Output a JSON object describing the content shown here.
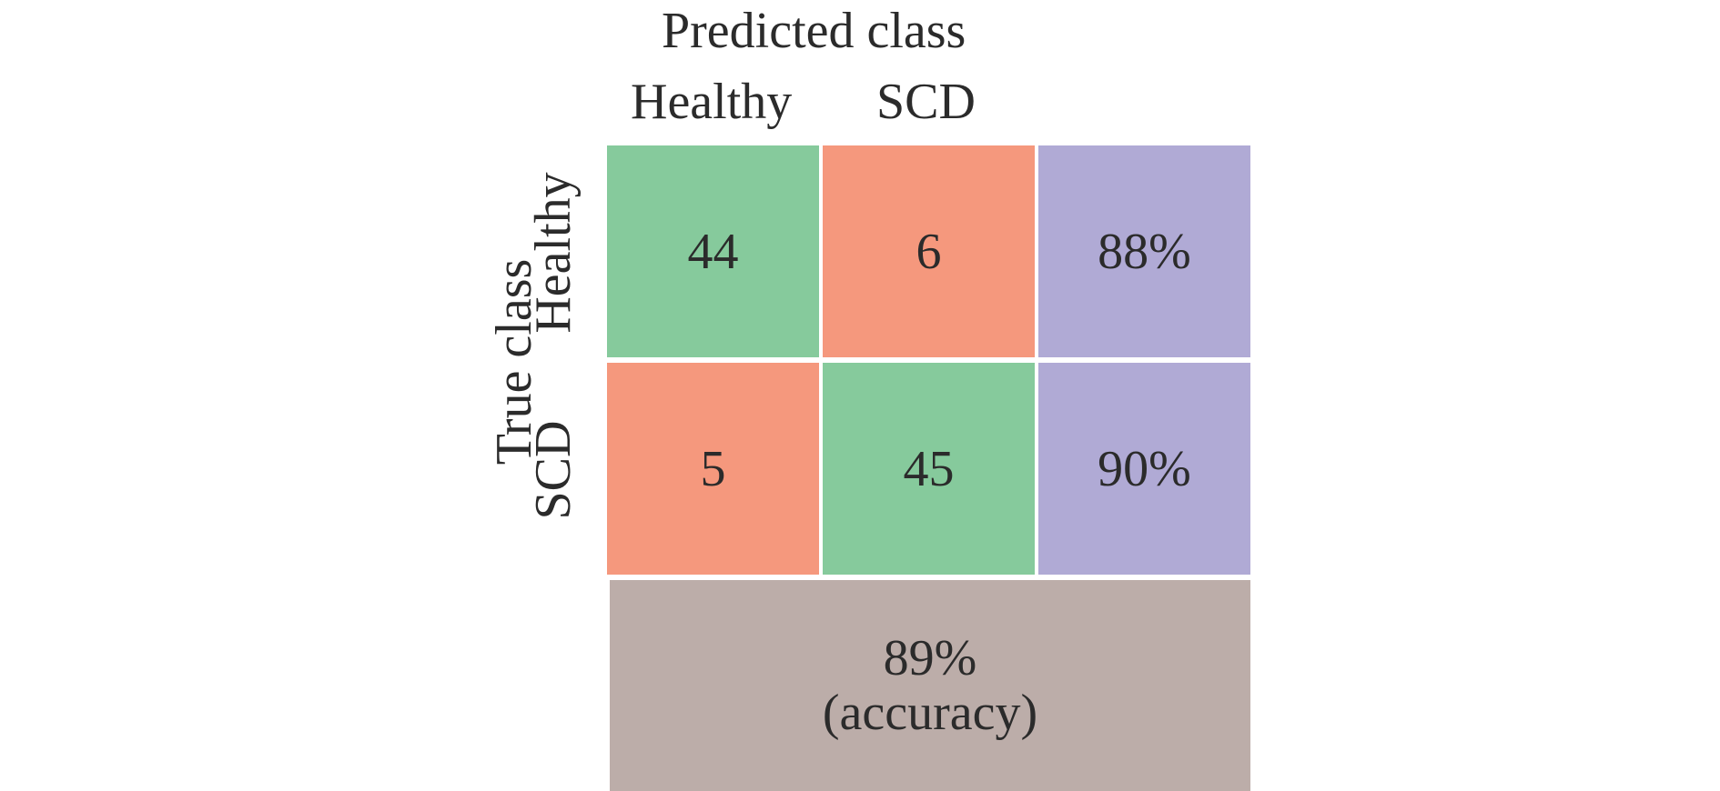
{
  "chart_data": {
    "type": "table",
    "title": "",
    "xlabel": "Predicted class",
    "ylabel": "True class",
    "columns": [
      "Healthy",
      "SCD"
    ],
    "rows": [
      "Healthy",
      "SCD"
    ],
    "matrix": [
      [
        44,
        6
      ],
      [
        5,
        45
      ]
    ],
    "row_rates": [
      "88%",
      "90%"
    ],
    "accuracy": "89%",
    "accuracy_label": "(accuracy)",
    "colors": {
      "correct": "#86CA9C",
      "incorrect": "#F5987D",
      "rate": "#B0AAD5",
      "accuracy": "#BCADA9"
    }
  }
}
